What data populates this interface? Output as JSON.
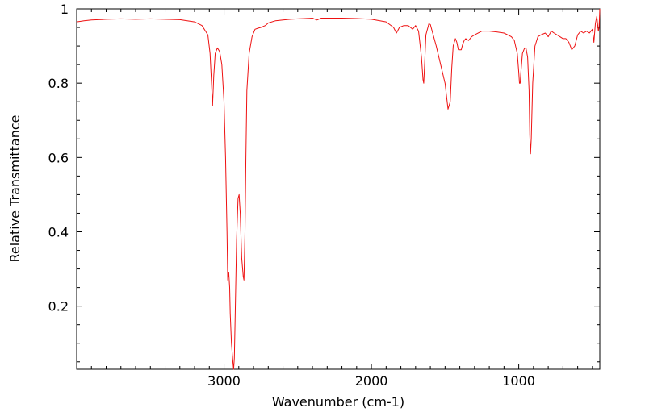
{
  "chart_data": {
    "type": "line",
    "title": "",
    "xlabel": "Wavenumber (cm-1)",
    "ylabel": "Relative Transmittance",
    "xlim": [
      4000,
      450
    ],
    "ylim": [
      0.03,
      1.0
    ],
    "x_reversed": true,
    "grid": false,
    "x_ticks": [
      {
        "value": 3000,
        "label": "3000"
      },
      {
        "value": 2000,
        "label": "2000"
      },
      {
        "value": 1000,
        "label": "1000"
      }
    ],
    "y_ticks": [
      {
        "value": 0.2,
        "label": "0.2"
      },
      {
        "value": 0.4,
        "label": "0.4"
      },
      {
        "value": 0.6,
        "label": "0.6"
      },
      {
        "value": 0.8,
        "label": "0.8"
      },
      {
        "value": 1.0,
        "label": "1"
      }
    ],
    "series": [
      {
        "color": "#ee1111",
        "x": [
          4000,
          3950,
          3900,
          3800,
          3700,
          3600,
          3500,
          3400,
          3300,
          3200,
          3150,
          3110,
          3095,
          3085,
          3078,
          3070,
          3060,
          3045,
          3030,
          3015,
          3000,
          2990,
          2980,
          2975,
          2968,
          2962,
          2958,
          2950,
          2940,
          2935,
          2930,
          2925,
          2915,
          2905,
          2898,
          2890,
          2880,
          2870,
          2865,
          2858,
          2852,
          2845,
          2830,
          2810,
          2790,
          2770,
          2750,
          2720,
          2700,
          2650,
          2600,
          2550,
          2500,
          2450,
          2400,
          2370,
          2340,
          2300,
          2200,
          2100,
          2000,
          1900,
          1850,
          1830,
          1810,
          1780,
          1750,
          1720,
          1700,
          1680,
          1660,
          1650,
          1645,
          1640,
          1630,
          1610,
          1600,
          1560,
          1500,
          1480,
          1465,
          1455,
          1445,
          1430,
          1420,
          1410,
          1400,
          1390,
          1380,
          1370,
          1360,
          1340,
          1320,
          1300,
          1250,
          1200,
          1150,
          1100,
          1050,
          1030,
          1010,
          1000,
          995,
          990,
          985,
          975,
          960,
          950,
          940,
          930,
          925,
          920,
          915,
          905,
          890,
          870,
          850,
          820,
          800,
          780,
          760,
          740,
          720,
          700,
          680,
          660,
          650,
          640,
          620,
          600,
          580,
          560,
          540,
          520,
          510,
          500,
          490,
          480,
          470,
          460,
          455,
          450
        ],
        "y": [
          0.965,
          0.968,
          0.97,
          0.972,
          0.973,
          0.972,
          0.973,
          0.972,
          0.971,
          0.965,
          0.955,
          0.93,
          0.88,
          0.8,
          0.74,
          0.82,
          0.88,
          0.895,
          0.885,
          0.85,
          0.75,
          0.6,
          0.4,
          0.27,
          0.29,
          0.25,
          0.18,
          0.1,
          0.05,
          0.03,
          0.06,
          0.16,
          0.38,
          0.49,
          0.5,
          0.45,
          0.33,
          0.28,
          0.27,
          0.4,
          0.6,
          0.78,
          0.88,
          0.925,
          0.945,
          0.948,
          0.95,
          0.955,
          0.962,
          0.968,
          0.97,
          0.972,
          0.973,
          0.974,
          0.975,
          0.97,
          0.975,
          0.975,
          0.975,
          0.974,
          0.972,
          0.965,
          0.95,
          0.935,
          0.95,
          0.955,
          0.955,
          0.945,
          0.955,
          0.94,
          0.87,
          0.81,
          0.8,
          0.84,
          0.93,
          0.96,
          0.958,
          0.9,
          0.8,
          0.73,
          0.75,
          0.84,
          0.9,
          0.92,
          0.91,
          0.89,
          0.89,
          0.89,
          0.905,
          0.915,
          0.92,
          0.915,
          0.925,
          0.93,
          0.94,
          0.94,
          0.938,
          0.935,
          0.925,
          0.915,
          0.88,
          0.83,
          0.8,
          0.8,
          0.83,
          0.88,
          0.895,
          0.893,
          0.87,
          0.78,
          0.66,
          0.61,
          0.65,
          0.8,
          0.9,
          0.925,
          0.93,
          0.935,
          0.925,
          0.94,
          0.935,
          0.93,
          0.925,
          0.92,
          0.92,
          0.91,
          0.9,
          0.89,
          0.9,
          0.93,
          0.94,
          0.935,
          0.94,
          0.935,
          0.94,
          0.945,
          0.91,
          0.96,
          0.98,
          0.94,
          0.95,
          1.0
        ]
      }
    ]
  }
}
